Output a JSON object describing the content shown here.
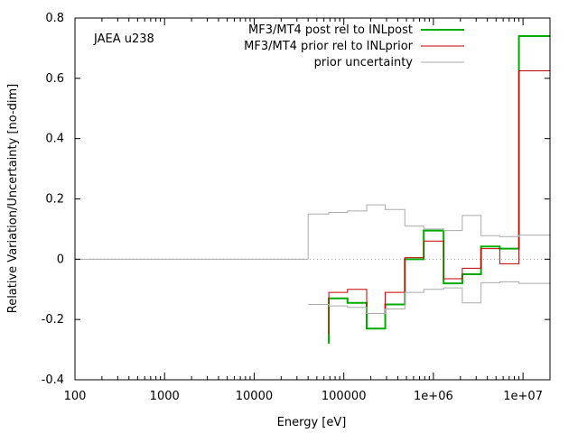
{
  "chart_data": {
    "type": "line",
    "title": "",
    "annotation": "JAEA u238",
    "xlabel": "Energy [eV]",
    "ylabel": "Relative Variation/Uncertainty [no-dim]",
    "xscale": "log",
    "xlim": [
      100,
      20000000
    ],
    "ylim": [
      -0.4,
      0.8
    ],
    "x_ticks": [
      100,
      1000,
      10000,
      100000,
      1000000,
      10000000
    ],
    "x_tick_labels": [
      "100",
      "1000",
      "10000",
      "100000",
      "1e+06",
      "1e+07"
    ],
    "y_ticks": [
      -0.4,
      -0.2,
      0,
      0.2,
      0.4,
      0.6,
      0.8
    ],
    "y_tick_labels": [
      "-0.4",
      "-0.2",
      "0",
      "0.2",
      "0.4",
      "0.6",
      "0.8"
    ],
    "legend_position": "top-right",
    "zero_line": true,
    "series": [
      {
        "name": "MF3/MT4 post rel to INLpost",
        "color": "#00aa00",
        "style": "steps",
        "x": [
          68000,
          110000,
          180000,
          290000,
          480000,
          780000,
          1300000,
          2100000,
          3400000,
          5500000,
          9000000,
          20000000
        ],
        "y": [
          -0.28,
          -0.13,
          -0.145,
          -0.23,
          -0.15,
          0.0,
          0.095,
          -0.08,
          -0.05,
          0.042,
          0.035,
          0.74
        ]
      },
      {
        "name": "MF3/MT4 prior rel to INLprior",
        "color": "#c00000",
        "style": "steps",
        "x": [
          68000,
          110000,
          180000,
          290000,
          480000,
          780000,
          1300000,
          2100000,
          3400000,
          5500000,
          9000000,
          20000000
        ],
        "y": [
          -0.25,
          -0.11,
          -0.1,
          -0.18,
          -0.11,
          0.005,
          0.06,
          -0.065,
          -0.03,
          0.035,
          -0.015,
          0.625
        ]
      },
      {
        "name": "prior uncertainty",
        "color": "#aaaaaa",
        "style": "steps",
        "x": [
          40000,
          68000,
          110000,
          180000,
          290000,
          480000,
          780000,
          1300000,
          2100000,
          3400000,
          5500000,
          9000000,
          20000000
        ],
        "y": [
          0.0,
          0.15,
          0.155,
          0.16,
          0.18,
          0.165,
          0.11,
          0.1,
          0.095,
          0.145,
          0.078,
          0.075,
          0.08
        ]
      },
      {
        "name": "",
        "color": "#aaaaaa",
        "style": "steps",
        "x": [
          40000,
          68000,
          110000,
          180000,
          290000,
          480000,
          780000,
          1300000,
          2100000,
          3400000,
          5500000,
          9000000,
          20000000
        ],
        "y": [
          -0.15,
          -0.15,
          -0.155,
          -0.16,
          -0.18,
          -0.165,
          -0.11,
          -0.1,
          -0.095,
          -0.145,
          -0.078,
          -0.075,
          -0.08
        ]
      }
    ]
  }
}
